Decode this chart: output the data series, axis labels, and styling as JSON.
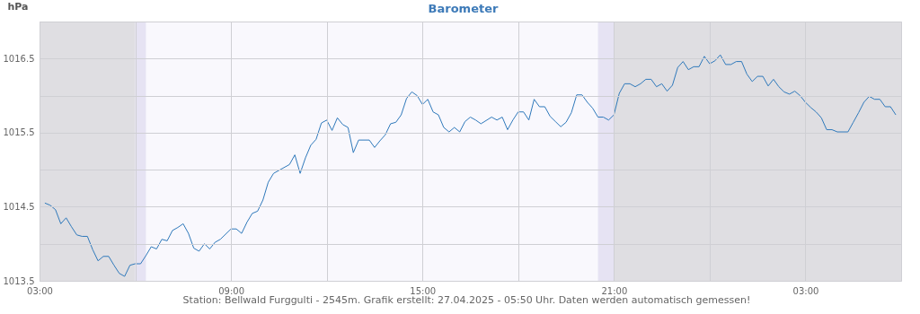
{
  "chart_data": {
    "type": "line",
    "title": "Barometer",
    "ylabel": "hPa",
    "annotations": [
      "Station: Bellwald Furggulti - 2545m. Grafik erstellt: 27.04.2025 - 05:50 Uhr. Daten werden automatisch gemessen!"
    ],
    "x": [
      "2025-04-26T03:10",
      "2025-04-26T03:20",
      "2025-04-26T03:30",
      "2025-04-26T03:40",
      "2025-04-26T03:50",
      "2025-04-26T04:00",
      "2025-04-26T04:10",
      "2025-04-26T04:20",
      "2025-04-26T04:30",
      "2025-04-26T04:40",
      "2025-04-26T04:50",
      "2025-04-26T05:00",
      "2025-04-26T05:10",
      "2025-04-26T05:20",
      "2025-04-26T05:30",
      "2025-04-26T05:40",
      "2025-04-26T05:50",
      "2025-04-26T06:00",
      "2025-04-26T06:10",
      "2025-04-26T06:20",
      "2025-04-26T06:30",
      "2025-04-26T06:40",
      "2025-04-26T06:50",
      "2025-04-26T07:00",
      "2025-04-26T07:10",
      "2025-04-26T07:20",
      "2025-04-26T07:30",
      "2025-04-26T07:40",
      "2025-04-26T07:50",
      "2025-04-26T08:00",
      "2025-04-26T08:10",
      "2025-04-26T08:20",
      "2025-04-26T08:30",
      "2025-04-26T08:40",
      "2025-04-26T09:00",
      "2025-04-26T09:10",
      "2025-04-26T09:20",
      "2025-04-26T09:30",
      "2025-04-26T09:40",
      "2025-04-26T09:50",
      "2025-04-26T10:00",
      "2025-04-26T10:10",
      "2025-04-26T10:20",
      "2025-04-26T10:30",
      "2025-04-26T10:50",
      "2025-04-26T11:00",
      "2025-04-26T11:10",
      "2025-04-26T11:20",
      "2025-04-26T11:30",
      "2025-04-26T11:40",
      "2025-04-26T11:50",
      "2025-04-26T12:00",
      "2025-04-26T12:10",
      "2025-04-26T12:20",
      "2025-04-26T12:30",
      "2025-04-26T12:40",
      "2025-04-26T12:50",
      "2025-04-26T13:00",
      "2025-04-26T13:20",
      "2025-04-26T13:30",
      "2025-04-26T13:40",
      "2025-04-26T13:50",
      "2025-04-26T14:00",
      "2025-04-26T14:10",
      "2025-04-26T14:20",
      "2025-04-26T14:30",
      "2025-04-26T14:40",
      "2025-04-26T14:50",
      "2025-04-26T15:00",
      "2025-04-26T15:10",
      "2025-04-26T15:20",
      "2025-04-26T15:30",
      "2025-04-26T15:40",
      "2025-04-26T15:50",
      "2025-04-26T16:00",
      "2025-04-26T16:10",
      "2025-04-26T16:20",
      "2025-04-26T16:30",
      "2025-04-26T16:40",
      "2025-04-26T16:50",
      "2025-04-26T17:10",
      "2025-04-26T17:20",
      "2025-04-26T17:30",
      "2025-04-26T17:40",
      "2025-04-26T17:50",
      "2025-04-26T18:00",
      "2025-04-26T18:10",
      "2025-04-26T18:20",
      "2025-04-26T18:30",
      "2025-04-26T18:40",
      "2025-04-26T18:50",
      "2025-04-26T19:00",
      "2025-04-26T19:10",
      "2025-04-26T19:20",
      "2025-04-26T19:30",
      "2025-04-26T19:40",
      "2025-04-26T19:50",
      "2025-04-26T20:00",
      "2025-04-26T20:10",
      "2025-04-26T20:20",
      "2025-04-26T20:30",
      "2025-04-26T20:40",
      "2025-04-26T20:50",
      "2025-04-26T21:00",
      "2025-04-26T21:10",
      "2025-04-26T21:20",
      "2025-04-26T21:30",
      "2025-04-26T21:40",
      "2025-04-26T21:50",
      "2025-04-26T22:00",
      "2025-04-26T22:10",
      "2025-04-26T22:20",
      "2025-04-26T22:30",
      "2025-04-26T22:40",
      "2025-04-26T22:50",
      "2025-04-26T23:00",
      "2025-04-26T23:10",
      "2025-04-26T23:20",
      "2025-04-26T23:30",
      "2025-04-26T23:40",
      "2025-04-26T23:50",
      "2025-04-27T00:00",
      "2025-04-27T00:10",
      "2025-04-27T00:20",
      "2025-04-27T00:30",
      "2025-04-27T00:40",
      "2025-04-27T00:50",
      "2025-04-27T01:00",
      "2025-04-27T01:10",
      "2025-04-27T01:20",
      "2025-04-27T01:30",
      "2025-04-27T01:40",
      "2025-04-27T01:50",
      "2025-04-27T02:00",
      "2025-04-27T02:10",
      "2025-04-27T02:20",
      "2025-04-27T02:30",
      "2025-04-27T02:40",
      "2025-04-27T02:50",
      "2025-04-27T03:00",
      "2025-04-27T03:10",
      "2025-04-27T03:20",
      "2025-04-27T03:30",
      "2025-04-27T03:40",
      "2025-04-27T03:50",
      "2025-04-27T04:00",
      "2025-04-27T04:20",
      "2025-04-27T04:30",
      "2025-04-27T04:40",
      "2025-04-27T04:50",
      "2025-04-27T05:00",
      "2025-04-27T05:10",
      "2025-04-27T05:20",
      "2025-04-27T05:30",
      "2025-04-27T05:40",
      "2025-04-27T05:50"
    ],
    "series": [
      {
        "color": "#2f79bb",
        "values": [
          1014.55,
          1014.52,
          1014.46,
          1014.27,
          1014.35,
          1014.23,
          1014.12,
          1014.1,
          1014.1,
          1013.92,
          1013.77,
          1013.83,
          1013.83,
          1013.71,
          1013.6,
          1013.56,
          1013.71,
          1013.73,
          1013.73,
          1013.84,
          1013.96,
          1013.93,
          1014.06,
          1014.04,
          1014.18,
          1014.22,
          1014.27,
          1014.14,
          1013.94,
          1013.9,
          1014.0,
          1013.93,
          1014.02,
          1014.06,
          1014.2,
          1014.2,
          1014.14,
          1014.29,
          1014.41,
          1014.44,
          1014.59,
          1014.83,
          1014.95,
          1014.99,
          1015.07,
          1015.2,
          1014.95,
          1015.16,
          1015.33,
          1015.41,
          1015.63,
          1015.67,
          1015.53,
          1015.7,
          1015.61,
          1015.57,
          1015.23,
          1015.4,
          1015.4,
          1015.3,
          1015.39,
          1015.47,
          1015.62,
          1015.64,
          1015.74,
          1015.96,
          1016.05,
          1016.0,
          1015.88,
          1015.95,
          1015.78,
          1015.74,
          1015.57,
          1015.51,
          1015.57,
          1015.51,
          1015.65,
          1015.71,
          1015.67,
          1015.62,
          1015.71,
          1015.67,
          1015.71,
          1015.54,
          1015.67,
          1015.78,
          1015.78,
          1015.67,
          1015.95,
          1015.85,
          1015.85,
          1015.72,
          1015.65,
          1015.58,
          1015.64,
          1015.77,
          1016.01,
          1016.01,
          1015.91,
          1015.83,
          1015.71,
          1015.71,
          1015.67,
          1015.74,
          1016.03,
          1016.16,
          1016.16,
          1016.12,
          1016.16,
          1016.22,
          1016.22,
          1016.12,
          1016.16,
          1016.06,
          1016.14,
          1016.38,
          1016.46,
          1016.35,
          1016.39,
          1016.39,
          1016.53,
          1016.43,
          1016.47,
          1016.55,
          1016.42,
          1016.42,
          1016.46,
          1016.46,
          1016.29,
          1016.19,
          1016.26,
          1016.26,
          1016.13,
          1016.22,
          1016.12,
          1016.05,
          1016.02,
          1016.06,
          1016.0,
          1015.91,
          1015.84,
          1015.78,
          1015.7,
          1015.54,
          1015.54,
          1015.51,
          1015.51,
          1015.64,
          1015.77,
          1015.91,
          1015.99,
          1015.95,
          1015.95,
          1015.85,
          1015.85,
          1015.74
        ]
      }
    ],
    "xlim": [
      "2025-04-26T03:00",
      "2025-04-27T06:00"
    ],
    "xticks": [
      {
        "value": "2025-04-26T03:00",
        "label": "03:00"
      },
      {
        "value": "2025-04-26T06:00",
        "label": null
      },
      {
        "value": "2025-04-26T09:00",
        "label": "09:00"
      },
      {
        "value": "2025-04-26T12:00",
        "label": null
      },
      {
        "value": "2025-04-26T15:00",
        "label": "15:00"
      },
      {
        "value": "2025-04-26T18:00",
        "label": null
      },
      {
        "value": "2025-04-26T21:00",
        "label": "21:00"
      },
      {
        "value": "2025-04-27T00:00",
        "label": null
      },
      {
        "value": "2025-04-27T03:00",
        "label": "03:00"
      }
    ],
    "ylim": [
      1013.5,
      1017
    ],
    "yticks": [
      1013.5,
      {
        "value": 1014,
        "label": null
      },
      1014.5,
      {
        "value": 1015,
        "label": null
      },
      1015.5,
      {
        "value": 1016,
        "label": null
      },
      1016.5,
      {
        "value": 1017,
        "label": null
      }
    ],
    "bands": [
      {
        "axis": "x",
        "from": "2025-04-26T03:00",
        "to": "2025-04-26T06:00",
        "color": "#dfdee2"
      },
      {
        "axis": "x",
        "from": "2025-04-26T06:00",
        "to": "2025-04-26T06:20",
        "color": "#e6e3f3"
      },
      {
        "axis": "x",
        "from": "2025-04-26T20:30",
        "to": "2025-04-26T21:00",
        "color": "#e6e3f3"
      },
      {
        "axis": "x",
        "from": "2025-04-26T21:00",
        "to": "2025-04-27T06:00",
        "color": "#dfdee2"
      }
    ],
    "grid": true,
    "marker": "none",
    "line_style": "solid"
  }
}
